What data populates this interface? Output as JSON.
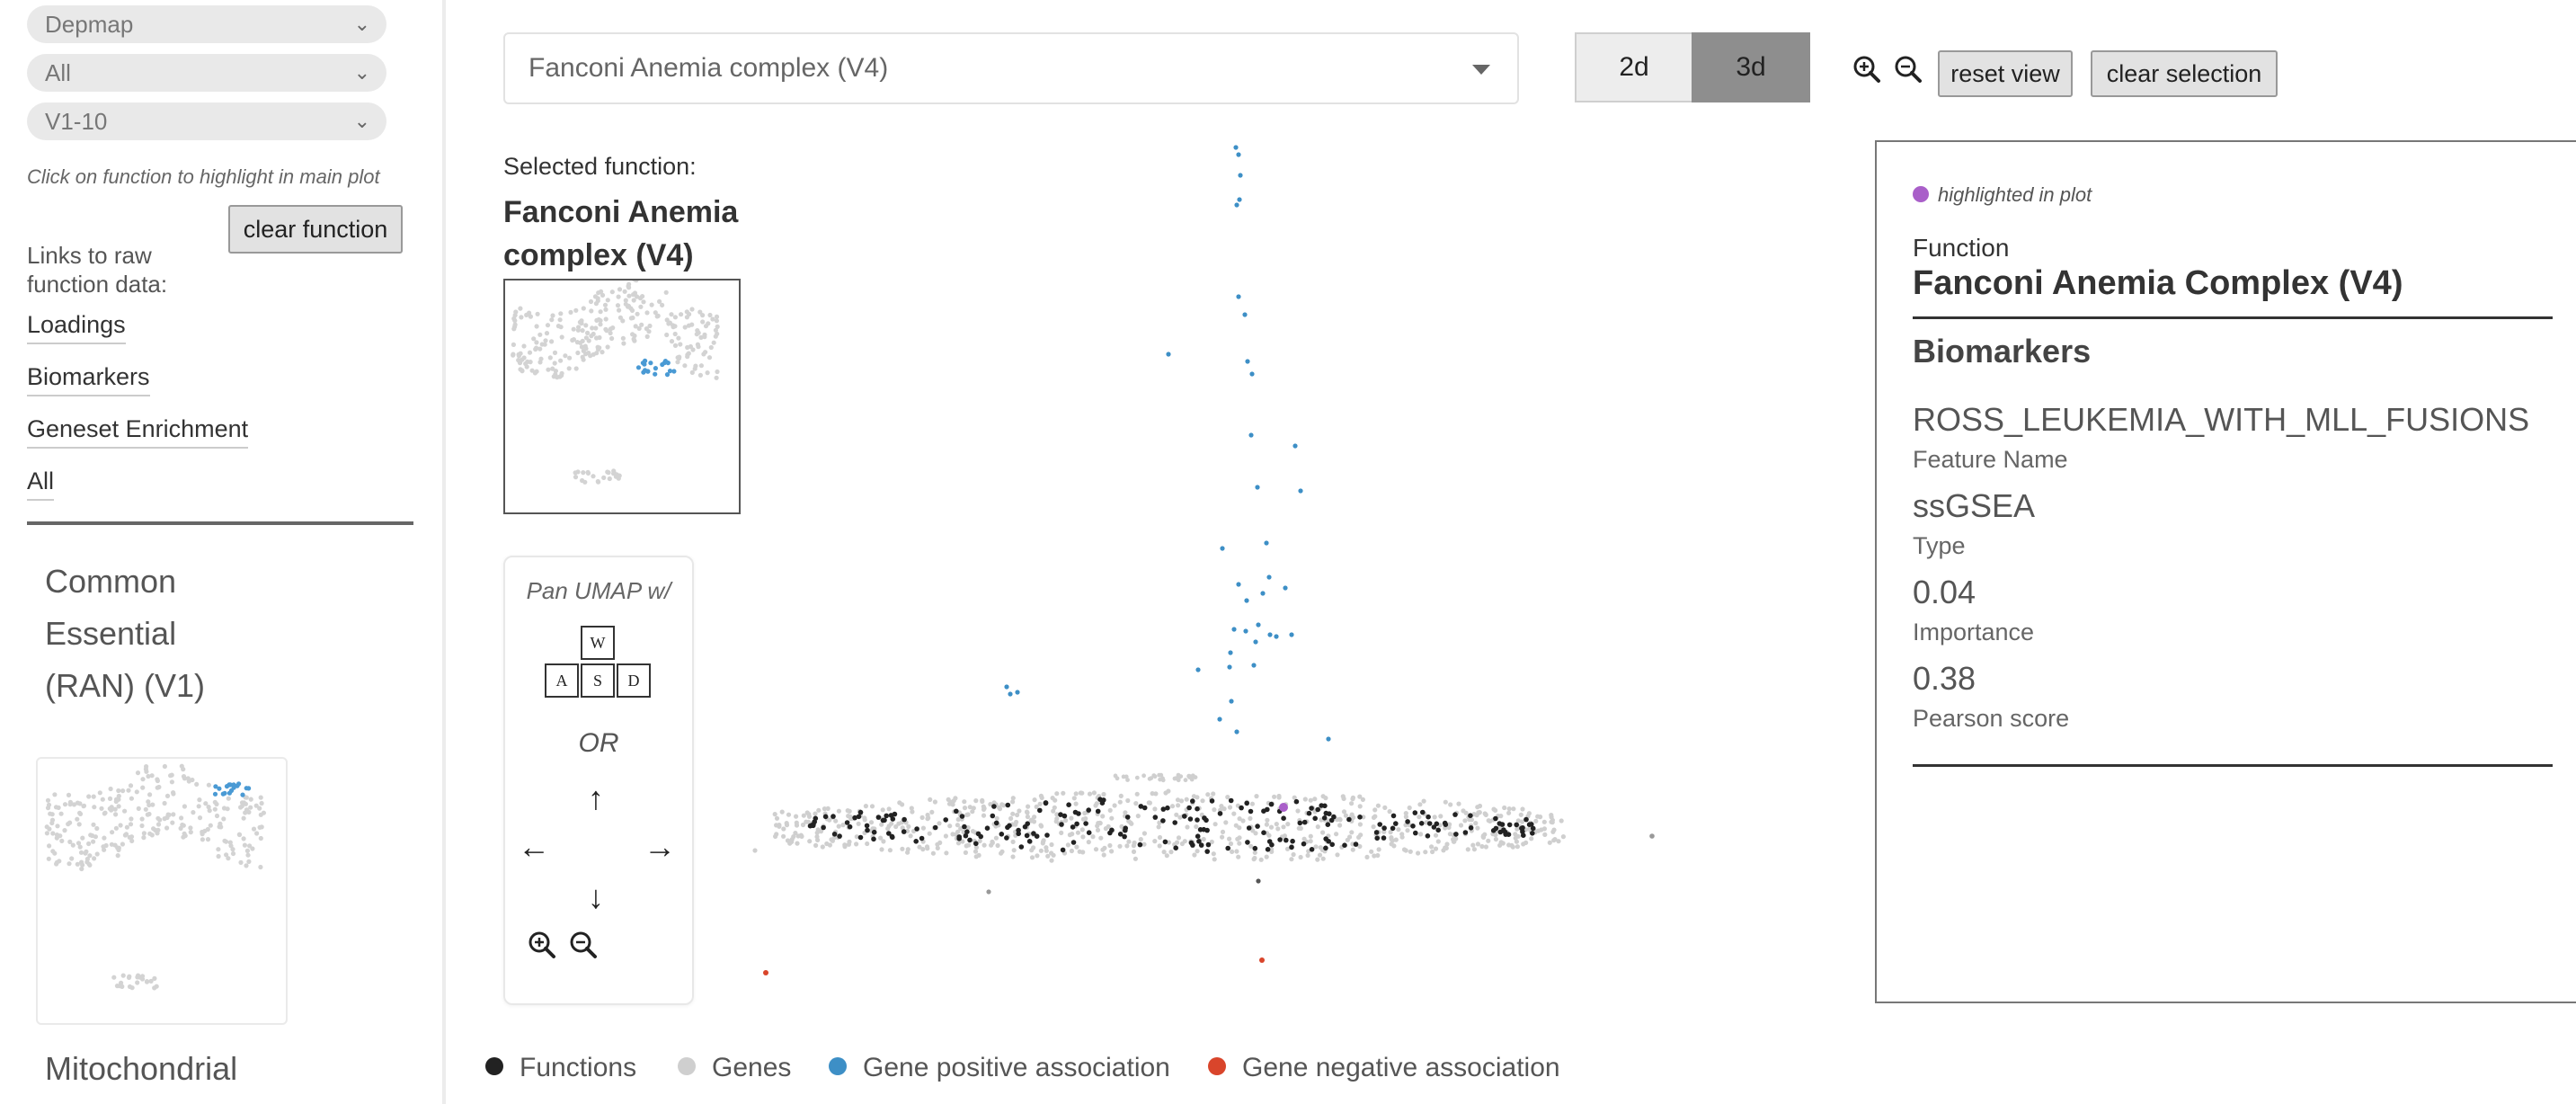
{
  "sidebar": {
    "dropdowns": [
      "Depmap",
      "All",
      "V1-10"
    ],
    "hint": "Click on function to highlight in main plot",
    "clear_function_label": "clear function",
    "links_title": "Links to raw function data:",
    "links": [
      "Loadings",
      "Biomarkers",
      "Geneset Enrichment",
      "All"
    ],
    "cards": [
      {
        "title": "Common Essential (RAN) (V1)"
      },
      {
        "title": "Mitochondrial"
      }
    ]
  },
  "main": {
    "function_select": "Fanconi Anemia complex (V4)",
    "view_toggle": {
      "option_2d": "2d",
      "option_3d": "3d",
      "selected": "3d"
    },
    "reset_view_label": "reset view",
    "clear_selection_label": "clear selection",
    "selected_function_label": "Selected function:",
    "selected_function_name": "Fanconi Anemia complex (V4)",
    "pan": {
      "title": "Pan UMAP w/",
      "keys": {
        "w": "W",
        "a": "A",
        "s": "S",
        "d": "D"
      },
      "or": "OR",
      "arrows": {
        "up": "↑",
        "left": "←",
        "right": "→",
        "down": "↓"
      }
    }
  },
  "legend": [
    {
      "label": "Functions",
      "color": "#222222"
    },
    {
      "label": "Genes",
      "color": "#cfcfcf"
    },
    {
      "label": "Gene positive association",
      "color": "#3d8fc6"
    },
    {
      "label": "Gene negative association",
      "color": "#d9452b"
    }
  ],
  "info": {
    "highlight_label": "highlighted in plot",
    "highlight_color": "#a95fc9",
    "function_label": "Function",
    "function_name": "Fanconi Anemia Complex (V4)",
    "biomarkers_title": "Biomarkers",
    "fields": [
      {
        "value": "ROSS_LEUKEMIA_WITH_MLL_FUSIONS",
        "label": "Feature Name"
      },
      {
        "value": "ssGSEA",
        "label": "Type"
      },
      {
        "value": "0.04",
        "label": "Importance"
      },
      {
        "value": "0.38",
        "label": "Pearson score"
      }
    ]
  },
  "colors": {
    "function_point": "#222222",
    "gene_point": "#cfcfcf",
    "positive_point": "#3d8fc6",
    "negative_point": "#d9452b",
    "highlight_point": "#a95fc9"
  }
}
